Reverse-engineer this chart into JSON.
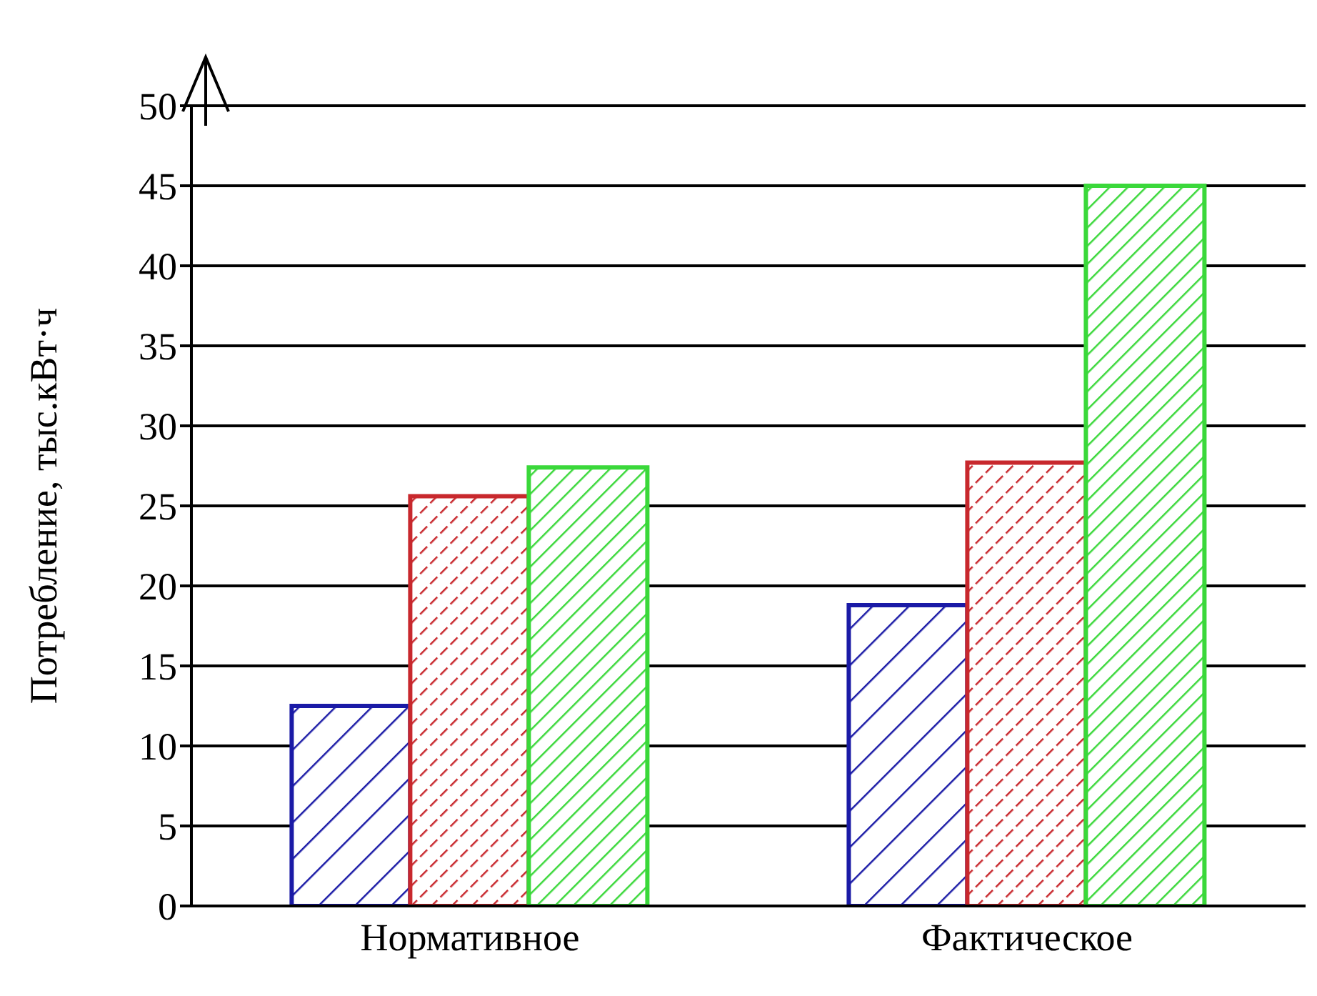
{
  "chart_data": {
    "type": "bar",
    "ylabel": "Потребление, тыс.кВт·ч",
    "categories": [
      "Нормативное",
      "Фактическое"
    ],
    "series": [
      {
        "color": "#1a1aa6",
        "values": [
          12.5,
          18.8
        ]
      },
      {
        "color": "#c8282d",
        "values": [
          25.6,
          27.7
        ]
      },
      {
        "color": "#3ad83a",
        "values": [
          27.4,
          45
        ]
      }
    ],
    "ylim": [
      0,
      50
    ],
    "yticks": [
      0,
      5,
      10,
      15,
      20,
      25,
      30,
      35,
      40,
      45,
      50
    ],
    "grid": "y",
    "legend": false
  }
}
